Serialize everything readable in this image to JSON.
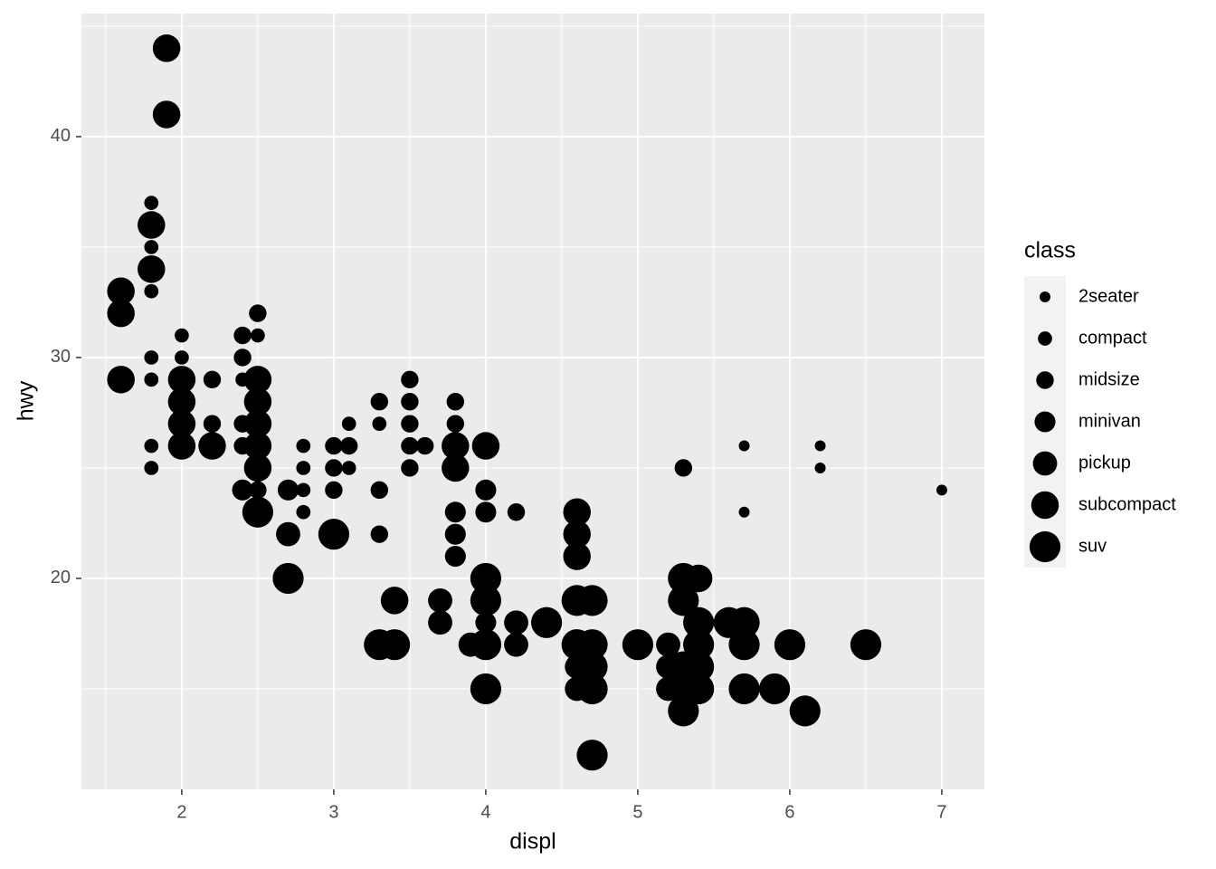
{
  "chart_data": {
    "type": "scatter",
    "x_label": "displ",
    "y_label": "hwy",
    "legend_title": "class",
    "xlim": [
      1.34,
      7.28
    ],
    "ylim": [
      10.45,
      45.57
    ],
    "xticks": [
      2,
      3,
      4,
      5,
      6,
      7
    ],
    "yticks": [
      20,
      30,
      40
    ],
    "grid": true,
    "legend": "right",
    "series": [
      {
        "name": "2seater",
        "color": "#000000",
        "x": [
          5.7,
          5.7,
          6.2,
          6.2,
          7.0
        ],
        "y": [
          26,
          23,
          26,
          25,
          24
        ]
      },
      {
        "name": "compact",
        "color": "#000000",
        "x": [
          1.8,
          1.8,
          1.8,
          1.8,
          1.8,
          1.8,
          1.8,
          2.0,
          2.0,
          2.4,
          2.5,
          2.8,
          2.8,
          2.8,
          2.8,
          3.1,
          3.1,
          3.3
        ],
        "y": [
          37,
          35,
          33,
          30,
          29,
          26,
          25,
          31,
          30,
          29,
          31,
          26,
          25,
          24,
          23,
          27,
          25,
          27
        ]
      },
      {
        "name": "midsize",
        "color": "#000000",
        "x": [
          2.2,
          2.2,
          2.4,
          2.4,
          2.4,
          2.4,
          2.5,
          2.5,
          3.0,
          3.0,
          3.0,
          3.1,
          3.3,
          3.3,
          3.3,
          3.5,
          3.5,
          3.5,
          3.5,
          3.5,
          3.6,
          3.8,
          3.8,
          4.2,
          5.3
        ],
        "y": [
          29,
          27,
          31,
          30,
          27,
          26,
          32,
          24,
          26,
          25,
          24,
          26,
          28,
          24,
          22,
          29,
          28,
          27,
          26,
          25,
          26,
          28,
          27,
          23,
          25
        ]
      },
      {
        "name": "minivan",
        "color": "#000000",
        "x": [
          2.4,
          2.7,
          3.8,
          3.8,
          3.8,
          4.0,
          4.0,
          4.0
        ],
        "y": [
          24,
          24,
          23,
          22,
          21,
          24,
          23,
          18
        ]
      },
      {
        "name": "pickup",
        "color": "#000000",
        "x": [
          2.7,
          3.7,
          3.7,
          3.9,
          4.2,
          4.2,
          4.6,
          4.6,
          5.2,
          5.2,
          5.2
        ],
        "y": [
          22,
          19,
          18,
          17,
          18,
          17,
          16,
          15,
          17,
          16,
          15
        ]
      },
      {
        "name": "subcompact",
        "color": "#000000",
        "x": [
          1.9,
          1.9,
          1.8,
          1.8,
          1.6,
          1.6,
          1.6,
          2.0,
          2.0,
          2.0,
          2.0,
          2.2,
          2.5,
          2.5,
          2.5,
          2.5,
          2.5,
          3.4,
          3.8,
          3.8,
          4.0,
          4.6,
          4.6,
          4.6,
          5.4
        ],
        "y": [
          44,
          41,
          36,
          34,
          33,
          32,
          29,
          29,
          28,
          27,
          26,
          26,
          29,
          28,
          27,
          26,
          25,
          19,
          26,
          25,
          26,
          23,
          22,
          21,
          20
        ]
      },
      {
        "name": "suv",
        "color": "#000000",
        "x": [
          2.5,
          2.7,
          3.0,
          3.3,
          3.4,
          4.0,
          4.0,
          4.0,
          4.0,
          4.4,
          4.6,
          4.6,
          4.7,
          4.7,
          4.7,
          4.7,
          4.7,
          5.0,
          5.3,
          5.3,
          5.3,
          5.3,
          5.3,
          5.4,
          5.4,
          5.4,
          5.4,
          5.6,
          5.7,
          5.7,
          5.7,
          5.9,
          6.0,
          6.1,
          6.5
        ],
        "y": [
          23,
          20,
          22,
          17,
          17,
          20,
          19,
          17,
          15,
          18,
          19,
          17,
          19,
          17,
          16,
          15,
          12,
          17,
          20,
          19,
          16,
          15,
          14,
          18,
          17,
          16,
          15,
          18,
          18,
          17,
          15,
          15,
          17,
          14,
          17
        ]
      }
    ]
  }
}
